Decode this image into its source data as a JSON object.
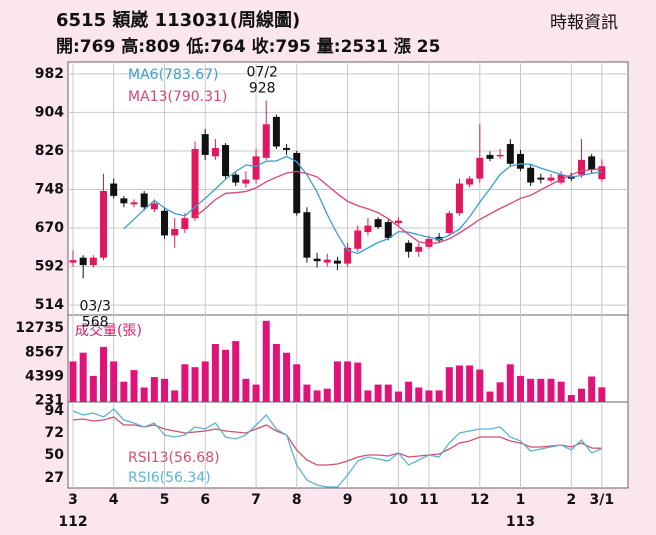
{
  "header": {
    "title": "6515  穎崴 113031(周線圖)",
    "source": "時報資訊",
    "quote": "開:769 高:809 低:764 收:795 量:2531 漲 25"
  },
  "chart_data": [
    {
      "type": "candlestick",
      "up_color": "#e2185f",
      "down_color": "#111111",
      "grid": true,
      "categories": [
        null,
        "03/3",
        null,
        null,
        null,
        null,
        null,
        null,
        null,
        null,
        null,
        null,
        null,
        null,
        null,
        null,
        null,
        null,
        null,
        "07/2",
        null,
        null,
        null,
        null,
        null,
        null,
        null,
        null,
        null,
        null,
        null,
        null,
        null,
        null,
        null,
        null,
        null,
        null,
        null,
        null,
        null,
        null,
        null,
        null,
        null,
        null,
        null,
        null,
        null,
        null,
        null,
        null,
        null
      ],
      "open": [
        600,
        610,
        595,
        610,
        760,
        730,
        718,
        740,
        708,
        705,
        655,
        668,
        690,
        860,
        815,
        838,
        778,
        760,
        768,
        812,
        895,
        832,
        822,
        702,
        608,
        600,
        604,
        598,
        628,
        662,
        688,
        682,
        680,
        640,
        622,
        632,
        652,
        660,
        700,
        758,
        770,
        818,
        815,
        840,
        820,
        792,
        772,
        766,
        762,
        775,
        778,
        815,
        769
      ],
      "high": [
        625,
        615,
        615,
        780,
        770,
        735,
        728,
        745,
        728,
        712,
        690,
        700,
        845,
        870,
        850,
        842,
        782,
        785,
        830,
        928,
        900,
        840,
        826,
        712,
        620,
        618,
        612,
        640,
        675,
        690,
        692,
        688,
        692,
        645,
        640,
        655,
        660,
        705,
        770,
        775,
        880,
        825,
        830,
        850,
        828,
        800,
        780,
        780,
        785,
        782,
        850,
        820,
        809
      ],
      "low": [
        592,
        568,
        590,
        605,
        730,
        712,
        712,
        705,
        702,
        648,
        630,
        660,
        685,
        808,
        808,
        770,
        755,
        752,
        760,
        808,
        830,
        818,
        695,
        600,
        590,
        592,
        585,
        592,
        622,
        655,
        668,
        645,
        675,
        610,
        612,
        628,
        640,
        655,
        695,
        752,
        762,
        805,
        810,
        795,
        785,
        755,
        760,
        762,
        758,
        765,
        772,
        782,
        764
      ],
      "close": [
        605,
        595,
        610,
        745,
        735,
        720,
        722,
        712,
        720,
        655,
        668,
        690,
        830,
        818,
        832,
        775,
        762,
        768,
        815,
        880,
        835,
        828,
        700,
        610,
        603,
        606,
        598,
        630,
        665,
        675,
        672,
        650,
        685,
        622,
        632,
        648,
        645,
        700,
        760,
        770,
        812,
        810,
        818,
        800,
        790,
        762,
        768,
        772,
        778,
        770,
        808,
        788,
        795
      ],
      "series": [
        {
          "name": "MA6(783.67)",
          "color": "#3a9fd0",
          "values": [
            null,
            null,
            null,
            null,
            null,
            668.3,
            687.8,
            707.3,
            725.7,
            710.7,
            699.5,
            694.5,
            712.5,
            730.2,
            748.8,
            768.8,
            784.5,
            797.5,
            795,
            805.3,
            805.8,
            814.7,
            804.3,
            778,
            742.7,
            697,
            657.5,
            624.5,
            618.7,
            629.5,
            641,
            648.3,
            662.8,
            661.5,
            656,
            651.5,
            647,
            655.3,
            667.8,
            692.5,
            722.5,
            749.5,
            778.3,
            795,
            800,
            798.7,
            791.3,
            785,
            778.3,
            773.3,
            776.3,
            780.7,
            783.67
          ]
        },
        {
          "name": "MA13(790.31)",
          "color": "#d9437a",
          "values": [
            null,
            null,
            null,
            null,
            null,
            null,
            null,
            null,
            null,
            null,
            null,
            null,
            692.8,
            709.2,
            727.5,
            740.2,
            741.5,
            744,
            751.3,
            763.5,
            772.9,
            781.2,
            784.7,
            780.2,
            773.5,
            756.3,
            739.4,
            723.8,
            715.4,
            708.7,
            701.3,
            688.6,
            673.6,
            657.2,
            642.2,
            638.2,
            640.8,
            648.3,
            660.2,
            673.4,
            687.4,
            698.5,
            709.5,
            719.4,
            730.2,
            736.1,
            747.3,
            758.1,
            768.1,
            777.7,
            786,
            788.2,
            790.31
          ]
        }
      ],
      "ylim": [
        494,
        1006
      ],
      "yticks": [
        514,
        592,
        670,
        748,
        826,
        904,
        982
      ]
    },
    {
      "type": "bar",
      "title": "成交量(張)",
      "color": "#e0137a",
      "values": [
        7000,
        8500,
        4500,
        9500,
        7000,
        3500,
        5500,
        2500,
        4300,
        4000,
        2000,
        6500,
        6000,
        7000,
        10000,
        9000,
        10500,
        4000,
        3000,
        14000,
        10000,
        8500,
        6500,
        3000,
        2000,
        2300,
        7000,
        7000,
        6800,
        2000,
        3000,
        3000,
        1800,
        3500,
        2500,
        2000,
        2000,
        6000,
        6300,
        6300,
        5600,
        1800,
        3400,
        6500,
        4500,
        4000,
        4000,
        4000,
        3500,
        1200,
        2300,
        4400,
        2531
      ],
      "ylim": [
        0,
        15000
      ],
      "yticks": [
        231,
        4399,
        8567,
        12735
      ]
    },
    {
      "type": "line",
      "series": [
        {
          "name": "RSI13(56.68)",
          "color": "#d0506e",
          "values": [
            85,
            86,
            84,
            85,
            88,
            80,
            80,
            78,
            80,
            76,
            74,
            72,
            73,
            74,
            76,
            74,
            73,
            72,
            76,
            80,
            74,
            70,
            55,
            45,
            40,
            40,
            41,
            44,
            48,
            50,
            50,
            49,
            52,
            48,
            49,
            50,
            51,
            56,
            62,
            64,
            68,
            68,
            68,
            64,
            62,
            58,
            58,
            59,
            60,
            58,
            62,
            57,
            56.68
          ]
        },
        {
          "name": "RSI6(56.34)",
          "color": "#5ab4d6",
          "values": [
            94,
            90,
            92,
            88,
            96,
            85,
            82,
            78,
            82,
            70,
            68,
            70,
            78,
            76,
            82,
            68,
            66,
            70,
            80,
            90,
            76,
            70,
            40,
            25,
            20,
            18,
            18,
            30,
            44,
            48,
            46,
            44,
            52,
            40,
            45,
            50,
            48,
            62,
            72,
            74,
            76,
            76,
            78,
            68,
            64,
            54,
            56,
            58,
            60,
            55,
            65,
            52,
            56.34
          ]
        }
      ],
      "ylim": [
        17,
        103
      ],
      "yticks": [
        27,
        50,
        72,
        94
      ],
      "xticks": [
        {
          "value": 0,
          "label": "3"
        },
        {
          "value": 4,
          "label": "4"
        },
        {
          "value": 9,
          "label": "5"
        },
        {
          "value": 13,
          "label": "6"
        },
        {
          "value": 18,
          "label": "7"
        },
        {
          "value": 22,
          "label": "8"
        },
        {
          "value": 27,
          "label": "9"
        },
        {
          "value": 32,
          "label": "10"
        },
        {
          "value": 35,
          "label": "11"
        },
        {
          "value": 40,
          "label": "12"
        },
        {
          "value": 44,
          "label": "1"
        },
        {
          "value": 49,
          "label": "2"
        },
        {
          "value": 52,
          "label": "3/1"
        }
      ],
      "year_ticks": [
        {
          "value": 0,
          "label": "112"
        },
        {
          "value": 44,
          "label": "113"
        }
      ]
    }
  ]
}
